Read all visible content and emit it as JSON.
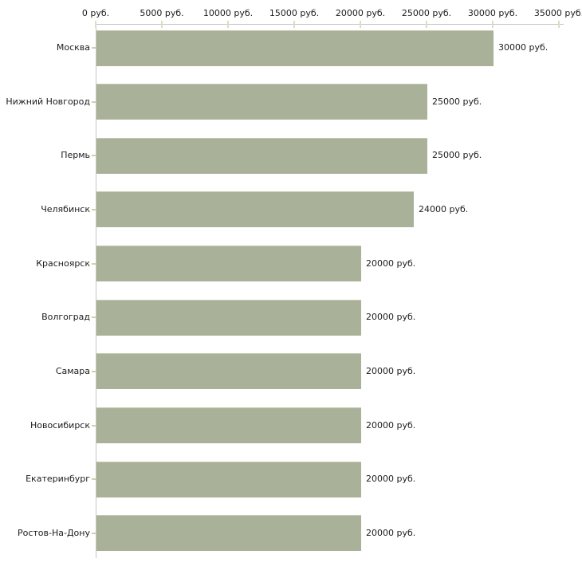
{
  "chart_data": {
    "type": "bar",
    "orientation": "horizontal",
    "title": "",
    "xlabel": "",
    "ylabel": "",
    "unit": "руб.",
    "categories": [
      "Москва",
      "Нижний Новгород",
      "Пермь",
      "Челябинск",
      "Красноярск",
      "Волгоград",
      "Самара",
      "Новосибирск",
      "Екатеринбург",
      "Ростов-На-Дону"
    ],
    "values": [
      30000,
      25000,
      25000,
      24000,
      20000,
      20000,
      20000,
      20000,
      20000,
      20000
    ],
    "bar_labels": [
      "30000 руб.",
      "25000 руб.",
      "25000 руб.",
      "24000 руб.",
      "20000 руб.",
      "20000 руб.",
      "20000 руб.",
      "20000 руб.",
      "20000 руб.",
      "20000 руб."
    ],
    "x_axis": {
      "position": "top",
      "range": [
        0,
        35000
      ],
      "ticks": [
        0,
        5000,
        10000,
        15000,
        20000,
        25000,
        30000,
        35000
      ],
      "tick_labels": [
        "0 руб.",
        "5000 руб.",
        "10000 руб.",
        "15000 руб.",
        "20000 руб.",
        "25000 руб.",
        "30000 руб.",
        "35000 руб."
      ]
    },
    "grid": "off",
    "legend": "none",
    "colors": {
      "bar": "#aab199",
      "bar_highlight": "#c3c8b1",
      "axis_line": "#c6c6c6",
      "x_tick": "#dcddc5",
      "y_tick": "#ccd1ab",
      "text": "#1c1c1c",
      "background": "#ffffff"
    }
  }
}
